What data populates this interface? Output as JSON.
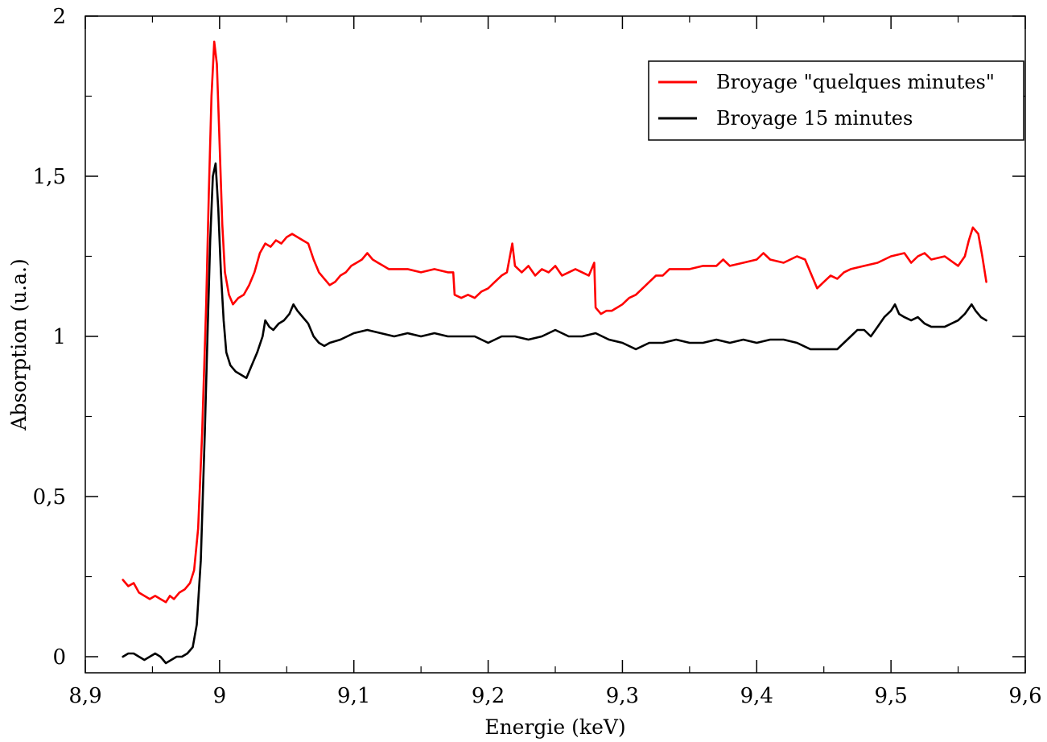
{
  "chart_data": {
    "type": "line",
    "title": "",
    "xlabel": "Energie (keV)",
    "ylabel": "Absorption (u.a.)",
    "xlim": [
      8.9,
      9.6
    ],
    "ylim": [
      -0.05,
      2.0
    ],
    "x_ticks": [
      8.9,
      9.0,
      9.1,
      9.2,
      9.3,
      9.4,
      9.5,
      9.6
    ],
    "x_tick_labels": [
      "8,9",
      "9",
      "9,1",
      "9,2",
      "9,3",
      "9,4",
      "9,5",
      "9,6"
    ],
    "y_ticks": [
      0,
      0.5,
      1.0,
      1.5,
      2.0
    ],
    "y_tick_labels": [
      "0",
      "0,5",
      "1",
      "1,5",
      "2"
    ],
    "grid": false,
    "legend_position": "top-right",
    "series": [
      {
        "name": "Broyage \"quelques minutes\"",
        "color": "#ff0000",
        "points": [
          [
            8.928,
            0.24
          ],
          [
            8.932,
            0.22
          ],
          [
            8.936,
            0.23
          ],
          [
            8.94,
            0.2
          ],
          [
            8.944,
            0.19
          ],
          [
            8.948,
            0.18
          ],
          [
            8.952,
            0.19
          ],
          [
            8.956,
            0.18
          ],
          [
            8.96,
            0.17
          ],
          [
            8.963,
            0.19
          ],
          [
            8.966,
            0.18
          ],
          [
            8.97,
            0.2
          ],
          [
            8.974,
            0.21
          ],
          [
            8.978,
            0.23
          ],
          [
            8.981,
            0.27
          ],
          [
            8.984,
            0.4
          ],
          [
            8.987,
            0.7
          ],
          [
            8.99,
            1.1
          ],
          [
            8.992,
            1.45
          ],
          [
            8.994,
            1.75
          ],
          [
            8.996,
            1.92
          ],
          [
            8.998,
            1.85
          ],
          [
            9.0,
            1.6
          ],
          [
            9.002,
            1.35
          ],
          [
            9.004,
            1.2
          ],
          [
            9.007,
            1.13
          ],
          [
            9.01,
            1.1
          ],
          [
            9.014,
            1.12
          ],
          [
            9.018,
            1.13
          ],
          [
            9.022,
            1.16
          ],
          [
            9.026,
            1.2
          ],
          [
            9.03,
            1.26
          ],
          [
            9.034,
            1.29
          ],
          [
            9.038,
            1.28
          ],
          [
            9.042,
            1.3
          ],
          [
            9.046,
            1.29
          ],
          [
            9.05,
            1.31
          ],
          [
            9.054,
            1.32
          ],
          [
            9.058,
            1.31
          ],
          [
            9.062,
            1.3
          ],
          [
            9.066,
            1.29
          ],
          [
            9.07,
            1.24
          ],
          [
            9.074,
            1.2
          ],
          [
            9.078,
            1.18
          ],
          [
            9.082,
            1.16
          ],
          [
            9.086,
            1.17
          ],
          [
            9.09,
            1.19
          ],
          [
            9.094,
            1.2
          ],
          [
            9.098,
            1.22
          ],
          [
            9.102,
            1.23
          ],
          [
            9.106,
            1.24
          ],
          [
            9.11,
            1.26
          ],
          [
            9.114,
            1.24
          ],
          [
            9.118,
            1.23
          ],
          [
            9.122,
            1.22
          ],
          [
            9.126,
            1.21
          ],
          [
            9.13,
            1.21
          ],
          [
            9.14,
            1.21
          ],
          [
            9.15,
            1.2
          ],
          [
            9.16,
            1.21
          ],
          [
            9.17,
            1.2
          ],
          [
            9.174,
            1.2
          ],
          [
            9.175,
            1.13
          ],
          [
            9.18,
            1.12
          ],
          [
            9.185,
            1.13
          ],
          [
            9.19,
            1.12
          ],
          [
            9.195,
            1.14
          ],
          [
            9.2,
            1.15
          ],
          [
            9.205,
            1.17
          ],
          [
            9.21,
            1.19
          ],
          [
            9.214,
            1.2
          ],
          [
            9.218,
            1.29
          ],
          [
            9.22,
            1.22
          ],
          [
            9.225,
            1.2
          ],
          [
            9.23,
            1.22
          ],
          [
            9.235,
            1.19
          ],
          [
            9.24,
            1.21
          ],
          [
            9.245,
            1.2
          ],
          [
            9.25,
            1.22
          ],
          [
            9.255,
            1.19
          ],
          [
            9.26,
            1.2
          ],
          [
            9.265,
            1.21
          ],
          [
            9.27,
            1.2
          ],
          [
            9.275,
            1.19
          ],
          [
            9.279,
            1.23
          ],
          [
            9.28,
            1.09
          ],
          [
            9.284,
            1.07
          ],
          [
            9.288,
            1.08
          ],
          [
            9.292,
            1.08
          ],
          [
            9.296,
            1.09
          ],
          [
            9.3,
            1.1
          ],
          [
            9.305,
            1.12
          ],
          [
            9.31,
            1.13
          ],
          [
            9.315,
            1.15
          ],
          [
            9.32,
            1.17
          ],
          [
            9.325,
            1.19
          ],
          [
            9.33,
            1.19
          ],
          [
            9.335,
            1.21
          ],
          [
            9.34,
            1.21
          ],
          [
            9.35,
            1.21
          ],
          [
            9.36,
            1.22
          ],
          [
            9.37,
            1.22
          ],
          [
            9.375,
            1.24
          ],
          [
            9.38,
            1.22
          ],
          [
            9.39,
            1.23
          ],
          [
            9.4,
            1.24
          ],
          [
            9.405,
            1.26
          ],
          [
            9.41,
            1.24
          ],
          [
            9.42,
            1.23
          ],
          [
            9.43,
            1.25
          ],
          [
            9.436,
            1.24
          ],
          [
            9.44,
            1.2
          ],
          [
            9.445,
            1.15
          ],
          [
            9.45,
            1.17
          ],
          [
            9.455,
            1.19
          ],
          [
            9.46,
            1.18
          ],
          [
            9.465,
            1.2
          ],
          [
            9.47,
            1.21
          ],
          [
            9.48,
            1.22
          ],
          [
            9.49,
            1.23
          ],
          [
            9.5,
            1.25
          ],
          [
            9.51,
            1.26
          ],
          [
            9.515,
            1.23
          ],
          [
            9.52,
            1.25
          ],
          [
            9.525,
            1.26
          ],
          [
            9.53,
            1.24
          ],
          [
            9.54,
            1.25
          ],
          [
            9.55,
            1.22
          ],
          [
            9.555,
            1.25
          ],
          [
            9.558,
            1.3
          ],
          [
            9.561,
            1.34
          ],
          [
            9.565,
            1.32
          ],
          [
            9.568,
            1.25
          ],
          [
            9.571,
            1.17
          ]
        ]
      },
      {
        "name": "Broyage 15 minutes",
        "color": "#000000",
        "points": [
          [
            8.928,
            0.0
          ],
          [
            8.932,
            0.01
          ],
          [
            8.936,
            0.01
          ],
          [
            8.94,
            0.0
          ],
          [
            8.944,
            -0.01
          ],
          [
            8.948,
            0.0
          ],
          [
            8.952,
            0.01
          ],
          [
            8.956,
            0.0
          ],
          [
            8.96,
            -0.02
          ],
          [
            8.964,
            -0.01
          ],
          [
            8.968,
            0.0
          ],
          [
            8.972,
            0.0
          ],
          [
            8.976,
            0.01
          ],
          [
            8.98,
            0.03
          ],
          [
            8.983,
            0.1
          ],
          [
            8.986,
            0.3
          ],
          [
            8.989,
            0.7
          ],
          [
            8.991,
            1.0
          ],
          [
            8.993,
            1.3
          ],
          [
            8.995,
            1.5
          ],
          [
            8.997,
            1.54
          ],
          [
            8.999,
            1.4
          ],
          [
            9.001,
            1.2
          ],
          [
            9.003,
            1.05
          ],
          [
            9.005,
            0.95
          ],
          [
            9.008,
            0.91
          ],
          [
            9.012,
            0.89
          ],
          [
            9.016,
            0.88
          ],
          [
            9.02,
            0.87
          ],
          [
            9.024,
            0.91
          ],
          [
            9.028,
            0.95
          ],
          [
            9.032,
            1.0
          ],
          [
            9.034,
            1.05
          ],
          [
            9.037,
            1.03
          ],
          [
            9.04,
            1.02
          ],
          [
            9.044,
            1.04
          ],
          [
            9.048,
            1.05
          ],
          [
            9.052,
            1.07
          ],
          [
            9.055,
            1.1
          ],
          [
            9.058,
            1.08
          ],
          [
            9.062,
            1.06
          ],
          [
            9.066,
            1.04
          ],
          [
            9.07,
            1.0
          ],
          [
            9.074,
            0.98
          ],
          [
            9.078,
            0.97
          ],
          [
            9.082,
            0.98
          ],
          [
            9.09,
            0.99
          ],
          [
            9.1,
            1.01
          ],
          [
            9.11,
            1.02
          ],
          [
            9.12,
            1.01
          ],
          [
            9.13,
            1.0
          ],
          [
            9.14,
            1.01
          ],
          [
            9.15,
            1.0
          ],
          [
            9.16,
            1.01
          ],
          [
            9.17,
            1.0
          ],
          [
            9.18,
            1.0
          ],
          [
            9.19,
            1.0
          ],
          [
            9.2,
            0.98
          ],
          [
            9.21,
            1.0
          ],
          [
            9.22,
            1.0
          ],
          [
            9.23,
            0.99
          ],
          [
            9.24,
            1.0
          ],
          [
            9.25,
            1.02
          ],
          [
            9.26,
            1.0
          ],
          [
            9.27,
            1.0
          ],
          [
            9.28,
            1.01
          ],
          [
            9.29,
            0.99
          ],
          [
            9.3,
            0.98
          ],
          [
            9.31,
            0.96
          ],
          [
            9.32,
            0.98
          ],
          [
            9.33,
            0.98
          ],
          [
            9.34,
            0.99
          ],
          [
            9.35,
            0.98
          ],
          [
            9.36,
            0.98
          ],
          [
            9.37,
            0.99
          ],
          [
            9.38,
            0.98
          ],
          [
            9.39,
            0.99
          ],
          [
            9.4,
            0.98
          ],
          [
            9.41,
            0.99
          ],
          [
            9.42,
            0.99
          ],
          [
            9.43,
            0.98
          ],
          [
            9.44,
            0.96
          ],
          [
            9.45,
            0.96
          ],
          [
            9.46,
            0.96
          ],
          [
            9.465,
            0.98
          ],
          [
            9.47,
            1.0
          ],
          [
            9.475,
            1.02
          ],
          [
            9.48,
            1.02
          ],
          [
            9.485,
            1.0
          ],
          [
            9.49,
            1.03
          ],
          [
            9.495,
            1.06
          ],
          [
            9.5,
            1.08
          ],
          [
            9.503,
            1.1
          ],
          [
            9.506,
            1.07
          ],
          [
            9.51,
            1.06
          ],
          [
            9.515,
            1.05
          ],
          [
            9.52,
            1.06
          ],
          [
            9.525,
            1.04
          ],
          [
            9.53,
            1.03
          ],
          [
            9.54,
            1.03
          ],
          [
            9.55,
            1.05
          ],
          [
            9.555,
            1.07
          ],
          [
            9.56,
            1.1
          ],
          [
            9.563,
            1.08
          ],
          [
            9.567,
            1.06
          ],
          [
            9.571,
            1.05
          ]
        ]
      }
    ]
  }
}
